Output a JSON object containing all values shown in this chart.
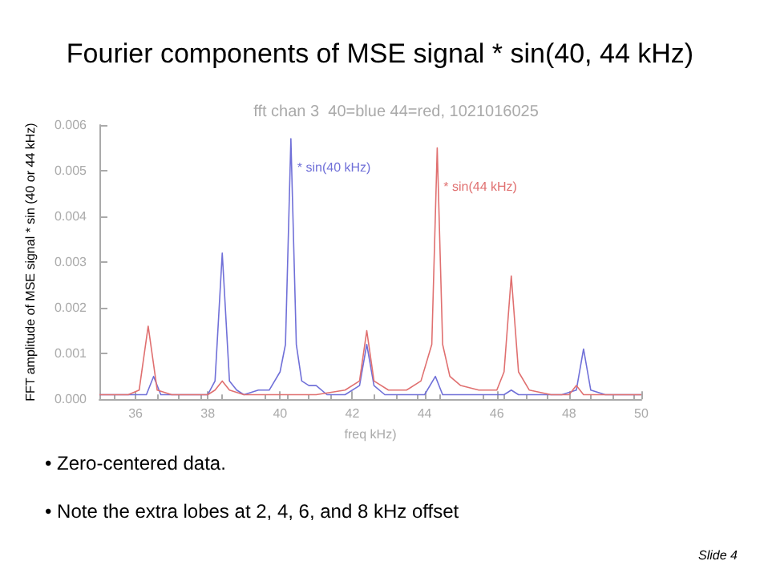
{
  "chart_data": {
    "type": "line",
    "title": "Fourier components of MSE signal * sin(40, 44 kHz)",
    "subtitle": "fft chan 3  40=blue 44=red, 1021016025",
    "xlabel": "freq kHz)",
    "ylabel": "FFT amplitude of MSE signal * sin (40 or 44 kHz)",
    "series": [
      {
        "color": "#7070d8",
        "x": [
          35.0,
          35.5,
          36.0,
          36.3,
          36.5,
          36.7,
          37.0,
          37.5,
          38.0,
          38.2,
          38.4,
          38.6,
          38.8,
          39.0,
          39.4,
          39.7,
          40.0,
          40.15,
          40.3,
          40.45,
          40.6,
          40.8,
          41.0,
          41.3,
          41.8,
          42.2,
          42.4,
          42.6,
          42.9,
          43.5,
          44.0,
          44.3,
          44.5,
          45.0,
          45.5,
          46.2,
          46.4,
          46.6,
          47.0,
          47.8,
          48.2,
          48.4,
          48.6,
          49.0,
          49.5,
          50.0
        ],
        "values": [
          0.0001,
          0.0001,
          0.0001,
          0.0001,
          0.0005,
          0.0001,
          0.0001,
          0.0001,
          0.0001,
          0.0004,
          0.0032,
          0.0004,
          0.0002,
          0.0001,
          0.0002,
          0.0002,
          0.0006,
          0.0012,
          0.0057,
          0.0012,
          0.0004,
          0.0003,
          0.0003,
          0.0001,
          0.0001,
          0.0003,
          0.0012,
          0.0003,
          0.0001,
          0.0001,
          0.0001,
          0.0005,
          0.0001,
          0.0001,
          0.0001,
          0.0001,
          0.0002,
          0.0001,
          0.0001,
          0.0001,
          0.0002,
          0.0011,
          0.0002,
          0.0001,
          0.0001,
          0.0001
        ]
      },
      {
        "color": "#e07070",
        "x": [
          35.0,
          35.8,
          36.1,
          36.35,
          36.6,
          37.0,
          38.0,
          38.2,
          38.4,
          38.6,
          39.0,
          40.0,
          40.5,
          41.0,
          41.8,
          42.2,
          42.4,
          42.6,
          43.0,
          43.5,
          43.9,
          44.2,
          44.35,
          44.5,
          44.7,
          45.0,
          45.5,
          46.0,
          46.2,
          46.4,
          46.6,
          46.9,
          47.5,
          48.0,
          48.2,
          48.4,
          49.0,
          50.0
        ],
        "values": [
          0.0001,
          0.0001,
          0.0002,
          0.0016,
          0.0002,
          0.0001,
          0.0001,
          0.0002,
          0.0004,
          0.0002,
          0.0001,
          0.0001,
          0.0001,
          0.0001,
          0.0002,
          0.0004,
          0.0015,
          0.0004,
          0.0002,
          0.0002,
          0.0004,
          0.0012,
          0.0055,
          0.0012,
          0.0005,
          0.0003,
          0.0002,
          0.0002,
          0.0006,
          0.0027,
          0.0006,
          0.0002,
          0.0001,
          0.0001,
          0.0003,
          0.0001,
          0.0001,
          0.0001
        ]
      }
    ],
    "annotations": [
      {
        "text": "* sin(40 kHz)",
        "x": 40.3,
        "y": 0.0057
      },
      {
        "text": "* sin(44 kHz)",
        "x": 44.35,
        "y": 0.0055
      },
      "• Zero-centered data.",
      "• Note the extra lobes at 2, 4, 6, and 8 kHz offset",
      "Slide 4"
    ],
    "xlim": [
      35,
      50
    ],
    "xticks": [
      36,
      38,
      40,
      42,
      44,
      46,
      48,
      50
    ],
    "ylim": [
      0,
      0.006
    ],
    "yticks": [
      {
        "value": 0,
        "label": "0.000"
      },
      {
        "value": 0.001,
        "label": "0.001"
      },
      {
        "value": 0.002,
        "label": "0.002"
      },
      {
        "value": 0.003,
        "label": "0.003"
      },
      {
        "value": 0.004,
        "label": "0.004"
      },
      {
        "value": 0.005,
        "label": "0.005"
      },
      {
        "value": 0.006,
        "label": "0.006"
      }
    ],
    "grid": false,
    "marker": "none",
    "line_style": "solid"
  }
}
